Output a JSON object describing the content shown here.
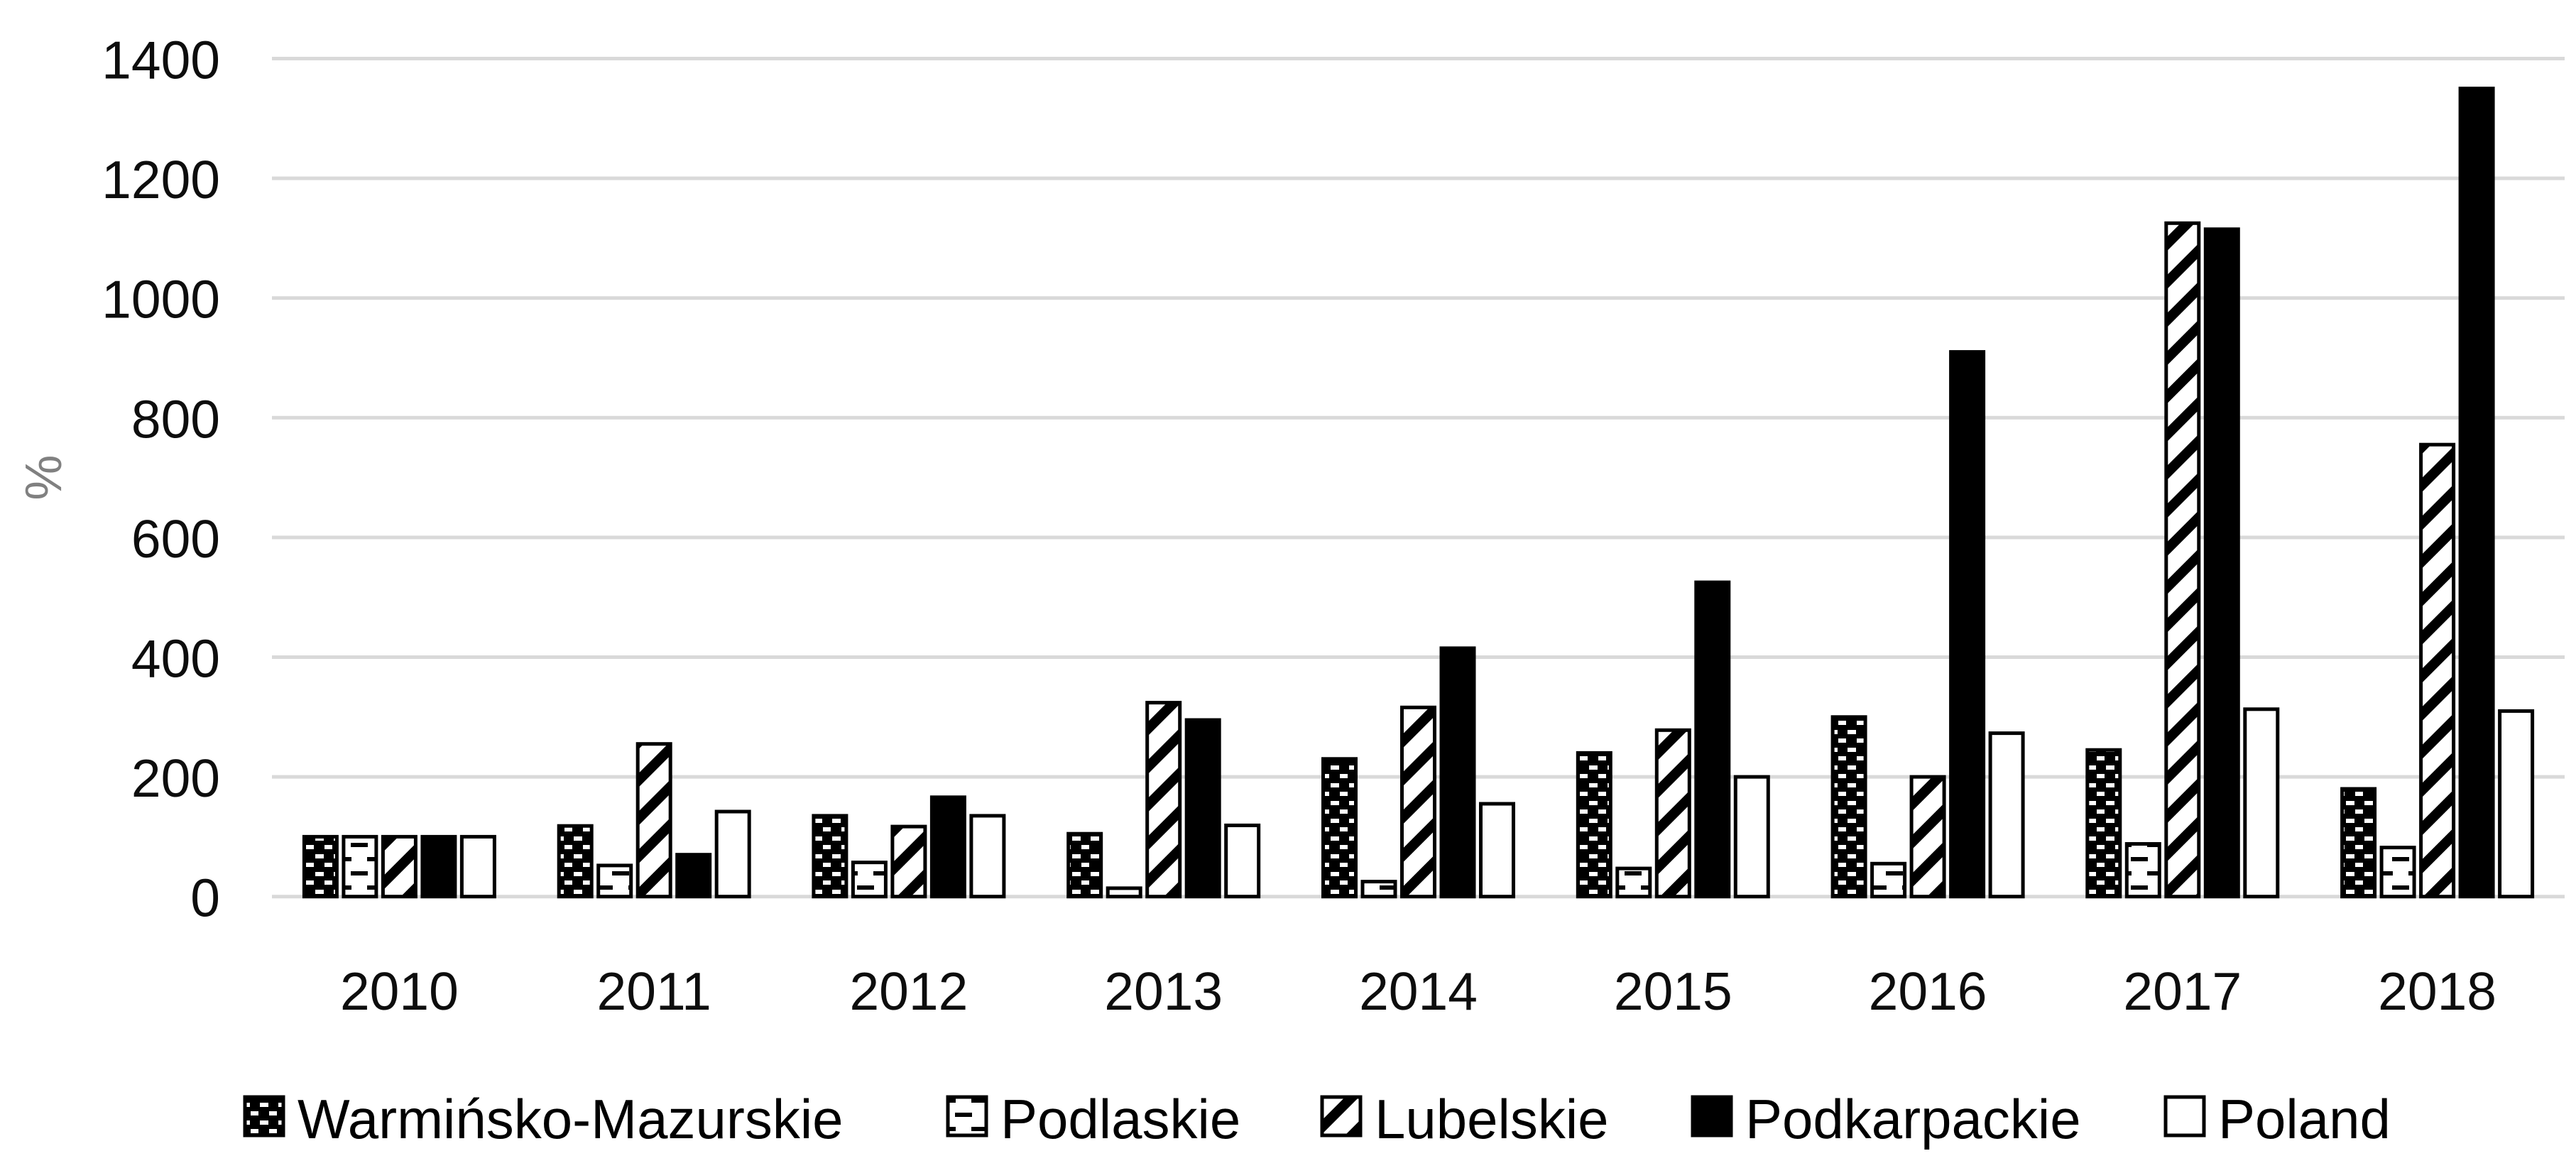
{
  "figure": {
    "background": "#ffffff"
  },
  "chart_data": {
    "type": "bar",
    "title": "",
    "xlabel": "",
    "ylabel": "%",
    "categories": [
      "2010",
      "2011",
      "2012",
      "2013",
      "2014",
      "2015",
      "2016",
      "2017",
      "2018"
    ],
    "series": [
      {
        "name": "Warmińsko-Mazurskie",
        "pattern": "black-with-white-dashes",
        "values": [
          100,
          118,
          135,
          105,
          230,
          240,
          300,
          245,
          180
        ]
      },
      {
        "name": "Podlaskie",
        "pattern": "white-with-black-dashes",
        "values": [
          100,
          52,
          57,
          14,
          25,
          47,
          55,
          88,
          82
        ]
      },
      {
        "name": "Lubelskie",
        "pattern": "diagonal-stripes",
        "values": [
          100,
          255,
          117,
          324,
          316,
          278,
          200,
          1125,
          755
        ]
      },
      {
        "name": "Podkarpackie",
        "pattern": "solid-black",
        "values": [
          100,
          70,
          166,
          295,
          415,
          525,
          910,
          1115,
          1350
        ]
      },
      {
        "name": "Poland",
        "pattern": "white",
        "values": [
          100,
          142,
          135,
          119,
          155,
          200,
          273,
          313,
          310
        ]
      }
    ],
    "ylim": [
      0,
      1400
    ],
    "ytick_step": 200,
    "yticks": [
      0,
      200,
      400,
      600,
      800,
      1000,
      1200,
      1400
    ],
    "grid": true,
    "legend_position": "bottom",
    "colors": {
      "bar_stroke": "#000000",
      "grid": "#d9d9d9",
      "tick_label": "#0d0d0d",
      "ylabel": "#808080",
      "legend_label": "#000000"
    }
  }
}
